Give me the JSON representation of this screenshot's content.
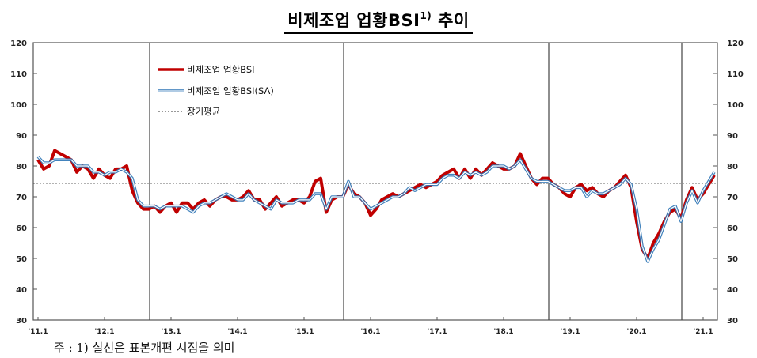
{
  "title": {
    "main": "비제조업 업황BSI",
    "superscript": "1)",
    "suffix": "추이"
  },
  "note": "주 : 1) 실선은 표본개편 시점을 의미",
  "colors": {
    "bsi": "#c00000",
    "bsi_sa": "#2e75b6",
    "avg": "#333333"
  },
  "chart_data": {
    "type": "line",
    "title": "비제조업 업황BSI 추이",
    "xlabel": "",
    "ylabel": "",
    "ylim": [
      30,
      120
    ],
    "yticks": [
      30,
      40,
      50,
      60,
      70,
      80,
      90,
      100,
      110,
      120
    ],
    "secondary_yticks": [
      30,
      40,
      50,
      60,
      70,
      80,
      90,
      100,
      110,
      120
    ],
    "x_tick_labels": [
      "'11.1",
      "'12.1",
      "'13.1",
      "'14.1",
      "'15.1",
      "'16.1",
      "'17.1",
      "'18.1",
      "'19.1",
      "'20.1",
      "'21.1"
    ],
    "x_start": "2011.1",
    "frequency": "monthly",
    "grid": false,
    "legend_position": "upper-left inside",
    "sample_revision_lines": [
      "2012.9",
      "2015.8",
      "2018.9",
      "2020.9"
    ],
    "long_term_average": 74.4,
    "series": [
      {
        "name": "비제조업 업황BSI",
        "color": "#c00000",
        "values": [
          82,
          79,
          80,
          85,
          84,
          83,
          82,
          78,
          80,
          79,
          76,
          79,
          77,
          76,
          79,
          79,
          80,
          72,
          68,
          66,
          66,
          67,
          65,
          67,
          68,
          65,
          68,
          68,
          66,
          68,
          69,
          67,
          69,
          70,
          70,
          69,
          69,
          70,
          72,
          69,
          69,
          66,
          68,
          70,
          67,
          68,
          69,
          69,
          68,
          70,
          75,
          76,
          65,
          69,
          70,
          70,
          74,
          71,
          70,
          68,
          64,
          66,
          69,
          70,
          71,
          70,
          71,
          72,
          73,
          74,
          73,
          74,
          75,
          77,
          78,
          79,
          76,
          79,
          76,
          79,
          77,
          79,
          81,
          80,
          79,
          79,
          80,
          84,
          80,
          76,
          74,
          76,
          76,
          74,
          73,
          71,
          70,
          73,
          74,
          72,
          73,
          71,
          70,
          72,
          73,
          75,
          77,
          73,
          62,
          53,
          50,
          55,
          58,
          62,
          65,
          66,
          63,
          69,
          73,
          69,
          71,
          74,
          77
        ]
      },
      {
        "name": "비제조업 업황BSI(SA)",
        "color": "#2e75b6",
        "values": [
          83,
          81,
          81,
          82,
          82,
          82,
          82,
          80,
          80,
          80,
          78,
          78,
          77,
          78,
          78,
          79,
          78,
          76,
          69,
          67,
          67,
          67,
          66,
          67,
          67,
          67,
          67,
          66,
          65,
          67,
          68,
          68,
          69,
          70,
          71,
          70,
          69,
          69,
          71,
          69,
          68,
          67,
          66,
          69,
          68,
          68,
          68,
          69,
          69,
          69,
          71,
          71,
          66,
          70,
          70,
          70,
          75,
          70,
          70,
          68,
          66,
          67,
          68,
          69,
          70,
          70,
          71,
          73,
          72,
          73,
          74,
          74,
          74,
          76,
          77,
          77,
          76,
          78,
          77,
          78,
          77,
          78,
          80,
          80,
          80,
          79,
          80,
          82,
          79,
          76,
          75,
          75,
          75,
          74,
          73,
          72,
          72,
          73,
          73,
          70,
          72,
          71,
          71,
          72,
          73,
          74,
          76,
          74,
          66,
          54,
          49,
          53,
          56,
          61,
          66,
          67,
          62,
          68,
          72,
          68,
          72,
          75,
          78
        ]
      },
      {
        "name": "장기평균",
        "style": "dotted",
        "value": 74.4
      }
    ]
  },
  "legend": {
    "items": [
      {
        "label": "비제조업 업황BSI"
      },
      {
        "label": "비제조업 업황BSI(SA)"
      },
      {
        "label": "장기평균"
      }
    ]
  }
}
